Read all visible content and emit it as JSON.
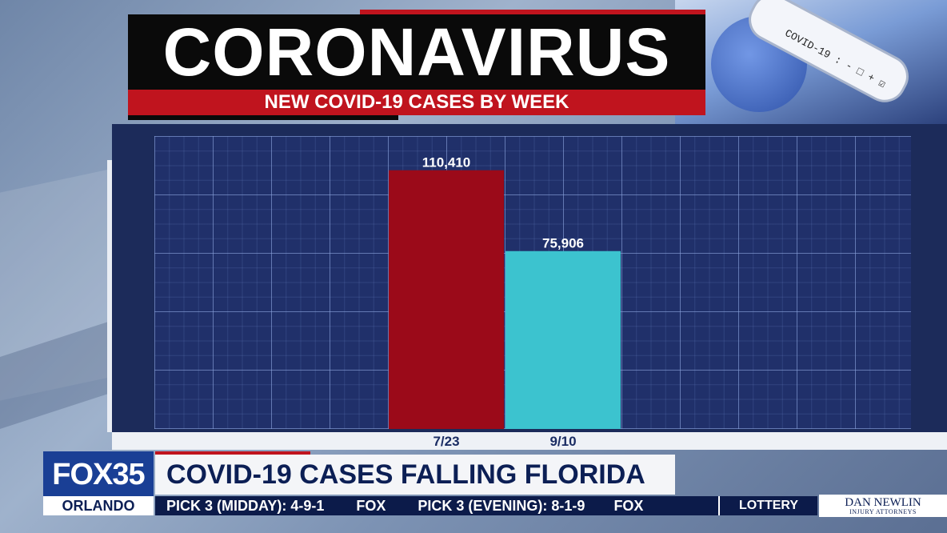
{
  "header": {
    "title": "CORONAVIRUS",
    "subtitle": "NEW COVID-19 CASES BY WEEK"
  },
  "background": {
    "test_tube_label": "COVID-19 : - □ + ☑"
  },
  "chart_data": {
    "type": "bar",
    "title": "NEW COVID-19 CASES BY WEEK",
    "categories": [
      "7/23",
      "9/10"
    ],
    "values": [
      110410,
      75906
    ],
    "value_labels": [
      "110,410",
      "75,906"
    ],
    "bar_colors": [
      "#9b0a19",
      "#3cc3cf"
    ],
    "ylim": [
      0,
      125000
    ],
    "grid": true
  },
  "ticker": {
    "logo": "FOX35",
    "city": "ORLANDO",
    "headline": "COVID-19 CASES FALLING FLORIDA",
    "crawl_item_1": "PICK 3 (MIDDAY): 4-9-1",
    "crawl_logo": "FOX",
    "crawl_item_2": "PICK 3 (EVENING): 8-1-9",
    "crawl_logo_2": "FOX",
    "section": "LOTTERY",
    "sponsor_name": "DAN NEWLIN",
    "sponsor_sub": "INJURY ATTORNEYS"
  }
}
